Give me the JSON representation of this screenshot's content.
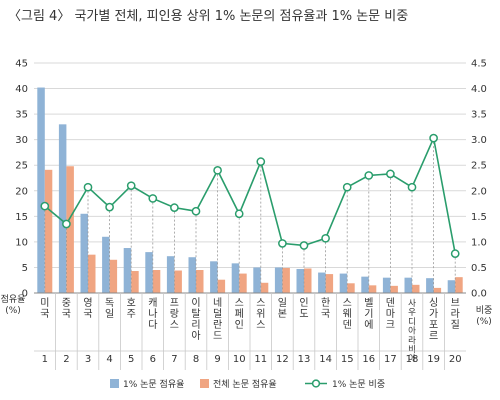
{
  "chart_data": {
    "type": "bar",
    "title": "〈그림 4〉 국가별 전체, 피인용 상위 1% 논문의 점유율과 1% 논문 비중",
    "ylabel_left": "점유율\n(%)",
    "ylabel_right": "비중\n(%)",
    "ylim": [
      0,
      45
    ],
    "ylim_right": [
      0,
      4.5
    ],
    "yticks": [
      "0",
      "5",
      "10",
      "15",
      "20",
      "25",
      "30",
      "35",
      "40",
      "45"
    ],
    "yticks_right": [
      "0.0",
      "0.5",
      "1.0",
      "1.5",
      "2.0",
      "2.5",
      "3.0",
      "3.5",
      "4.0",
      "4.5"
    ],
    "grid": true,
    "legend_position": "bottom",
    "categories": [
      "미국",
      "중국",
      "영국",
      "독일",
      "호주",
      "캐나다",
      "프랑스",
      "이탈리아",
      "네덜란드",
      "스페인",
      "스위스",
      "일본",
      "인도",
      "한국",
      "스웨덴",
      "벨기에",
      "덴마크",
      "사우디아라비아",
      "싱가포르",
      "브라질"
    ],
    "ranks": [
      "1",
      "2",
      "3",
      "4",
      "5",
      "6",
      "7",
      "8",
      "9",
      "10",
      "11",
      "12",
      "13",
      "14",
      "15",
      "16",
      "17",
      "18",
      "19",
      "20"
    ],
    "series": [
      {
        "name": "1% 논문 점유율",
        "type": "bar",
        "axis": "left",
        "color": "#8fb3d6",
        "values": [
          40.2,
          33.0,
          15.5,
          11.0,
          8.8,
          8.0,
          7.2,
          7.0,
          6.2,
          5.8,
          5.0,
          5.0,
          4.7,
          4.0,
          3.8,
          3.2,
          3.0,
          3.0,
          2.9,
          2.5
        ]
      },
      {
        "name": "전체 논문 점유율",
        "type": "bar",
        "axis": "left",
        "color": "#f0a582",
        "values": [
          24.1,
          24.8,
          7.5,
          6.5,
          4.3,
          4.5,
          4.4,
          4.5,
          2.6,
          3.8,
          2.0,
          4.9,
          4.8,
          3.7,
          1.9,
          1.5,
          1.4,
          1.6,
          1.0,
          3.1
        ]
      },
      {
        "name": "1% 논문 비중",
        "type": "line",
        "axis": "right",
        "color": "#2a9d6c",
        "values": [
          1.7,
          1.35,
          2.07,
          1.68,
          2.1,
          1.85,
          1.67,
          1.6,
          2.4,
          1.55,
          2.57,
          0.97,
          0.93,
          1.07,
          2.07,
          2.3,
          2.33,
          2.07,
          3.03,
          0.77
        ]
      }
    ]
  }
}
